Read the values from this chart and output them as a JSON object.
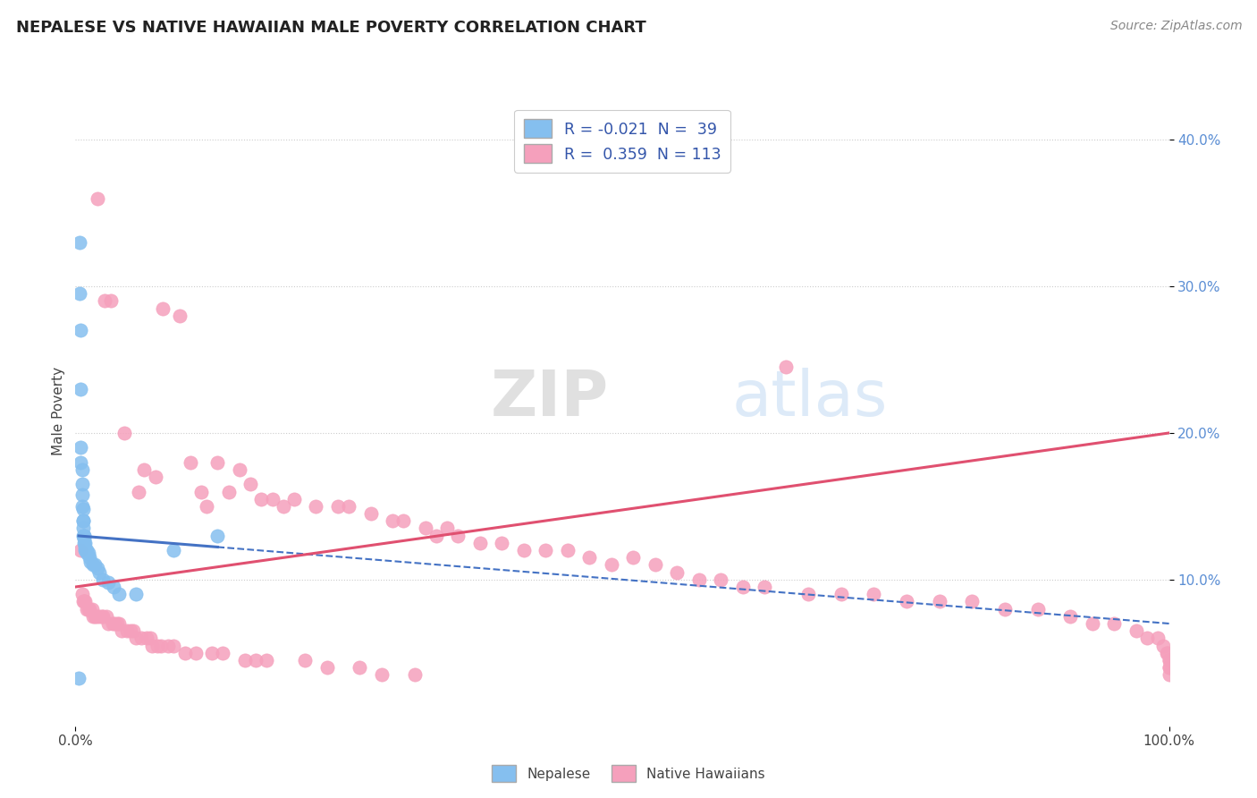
{
  "title": "NEPALESE VS NATIVE HAWAIIAN MALE POVERTY CORRELATION CHART",
  "source": "Source: ZipAtlas.com",
  "ylabel": "Male Poverty",
  "xlim": [
    0.0,
    1.0
  ],
  "ylim": [
    0.0,
    0.43
  ],
  "nepalese_color": "#85BFEF",
  "hawaiian_color": "#F5A0BC",
  "nepalese_line_color": "#4472C4",
  "hawaiian_line_color": "#E05070",
  "legend_label1": "R = -0.021  N =  39",
  "legend_label2": "R =  0.359  N = 113",
  "watermark": "ZIPatlas",
  "nepalese_x": [
    0.003,
    0.004,
    0.004,
    0.005,
    0.005,
    0.005,
    0.005,
    0.006,
    0.006,
    0.006,
    0.006,
    0.007,
    0.007,
    0.007,
    0.007,
    0.007,
    0.008,
    0.008,
    0.008,
    0.008,
    0.009,
    0.009,
    0.009,
    0.01,
    0.01,
    0.012,
    0.013,
    0.014,
    0.016,
    0.018,
    0.02,
    0.022,
    0.025,
    0.03,
    0.035,
    0.04,
    0.055,
    0.09,
    0.13
  ],
  "nepalese_y": [
    0.033,
    0.33,
    0.295,
    0.27,
    0.23,
    0.19,
    0.18,
    0.175,
    0.165,
    0.158,
    0.15,
    0.148,
    0.14,
    0.14,
    0.135,
    0.13,
    0.13,
    0.13,
    0.128,
    0.125,
    0.125,
    0.122,
    0.12,
    0.12,
    0.118,
    0.118,
    0.115,
    0.112,
    0.11,
    0.11,
    0.108,
    0.105,
    0.1,
    0.098,
    0.095,
    0.09,
    0.09,
    0.12,
    0.13
  ],
  "hawaiian_x": [
    0.005,
    0.006,
    0.007,
    0.008,
    0.009,
    0.01,
    0.012,
    0.013,
    0.015,
    0.016,
    0.018,
    0.019,
    0.02,
    0.022,
    0.024,
    0.025,
    0.027,
    0.028,
    0.03,
    0.032,
    0.034,
    0.036,
    0.038,
    0.04,
    0.042,
    0.045,
    0.047,
    0.05,
    0.053,
    0.055,
    0.058,
    0.06,
    0.063,
    0.065,
    0.068,
    0.07,
    0.073,
    0.075,
    0.078,
    0.08,
    0.085,
    0.09,
    0.095,
    0.1,
    0.105,
    0.11,
    0.115,
    0.12,
    0.125,
    0.13,
    0.135,
    0.14,
    0.15,
    0.155,
    0.16,
    0.165,
    0.17,
    0.175,
    0.18,
    0.19,
    0.2,
    0.21,
    0.22,
    0.23,
    0.24,
    0.25,
    0.26,
    0.27,
    0.28,
    0.29,
    0.3,
    0.31,
    0.32,
    0.33,
    0.34,
    0.35,
    0.37,
    0.39,
    0.41,
    0.43,
    0.45,
    0.47,
    0.49,
    0.51,
    0.53,
    0.55,
    0.57,
    0.59,
    0.61,
    0.63,
    0.65,
    0.67,
    0.7,
    0.73,
    0.76,
    0.79,
    0.82,
    0.85,
    0.88,
    0.91,
    0.93,
    0.95,
    0.97,
    0.98,
    0.99,
    0.995,
    0.998,
    0.999,
    1.0,
    1.0,
    1.0,
    1.0,
    1.0
  ],
  "hawaiian_y": [
    0.12,
    0.09,
    0.085,
    0.085,
    0.085,
    0.08,
    0.08,
    0.08,
    0.08,
    0.075,
    0.075,
    0.075,
    0.36,
    0.075,
    0.075,
    0.075,
    0.29,
    0.075,
    0.07,
    0.29,
    0.07,
    0.07,
    0.07,
    0.07,
    0.065,
    0.2,
    0.065,
    0.065,
    0.065,
    0.06,
    0.16,
    0.06,
    0.175,
    0.06,
    0.06,
    0.055,
    0.17,
    0.055,
    0.055,
    0.285,
    0.055,
    0.055,
    0.28,
    0.05,
    0.18,
    0.05,
    0.16,
    0.15,
    0.05,
    0.18,
    0.05,
    0.16,
    0.175,
    0.045,
    0.165,
    0.045,
    0.155,
    0.045,
    0.155,
    0.15,
    0.155,
    0.045,
    0.15,
    0.04,
    0.15,
    0.15,
    0.04,
    0.145,
    0.035,
    0.14,
    0.14,
    0.035,
    0.135,
    0.13,
    0.135,
    0.13,
    0.125,
    0.125,
    0.12,
    0.12,
    0.12,
    0.115,
    0.11,
    0.115,
    0.11,
    0.105,
    0.1,
    0.1,
    0.095,
    0.095,
    0.245,
    0.09,
    0.09,
    0.09,
    0.085,
    0.085,
    0.085,
    0.08,
    0.08,
    0.075,
    0.07,
    0.07,
    0.065,
    0.06,
    0.06,
    0.055,
    0.05,
    0.05,
    0.045,
    0.045,
    0.04,
    0.04,
    0.035
  ]
}
